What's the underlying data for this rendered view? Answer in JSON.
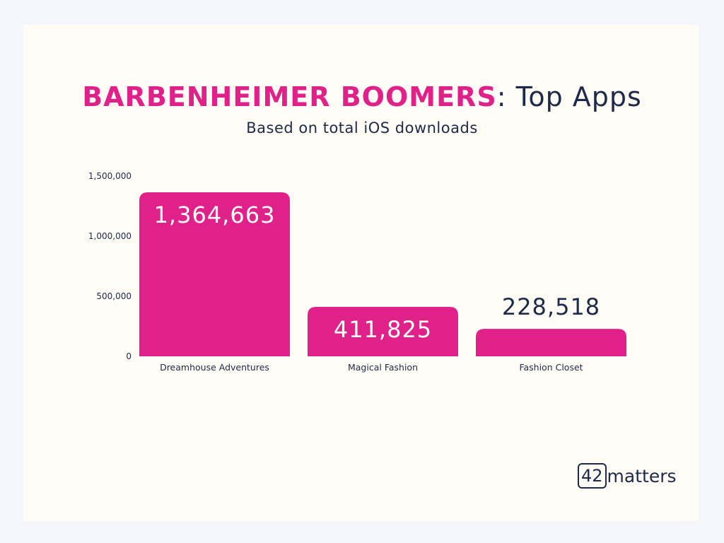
{
  "header": {
    "title_highlight": "BARBENHEIMER BOOMERS",
    "title_rest": ": Top Apps",
    "subtitle": "Based on total iOS downloads"
  },
  "logo": {
    "box_text": "42",
    "text": "matters"
  },
  "colors": {
    "accent": "#e0218a",
    "text": "#1c2b4a",
    "card_bg": "#fffbf5",
    "page_bg": "#f5f6fb"
  },
  "chart_data": {
    "type": "bar",
    "title": "BARBENHEIMER BOOMERS: Top Apps",
    "subtitle": "Based on total iOS downloads",
    "categories": [
      "Dreamhouse Adventures",
      "Magical Fashion",
      "Fashion Closet"
    ],
    "values": [
      1364663,
      411825,
      228518
    ],
    "data_labels": [
      "1,364,663",
      "411,825",
      "228,518"
    ],
    "ylim": [
      0,
      1500000
    ],
    "yticks": [
      0,
      500000,
      1000000,
      1500000
    ],
    "ytick_labels": [
      "0",
      "500,000",
      "1,000,000",
      "1,500,000"
    ],
    "xlabel": "",
    "ylabel": "",
    "grid": false,
    "legend": false
  }
}
